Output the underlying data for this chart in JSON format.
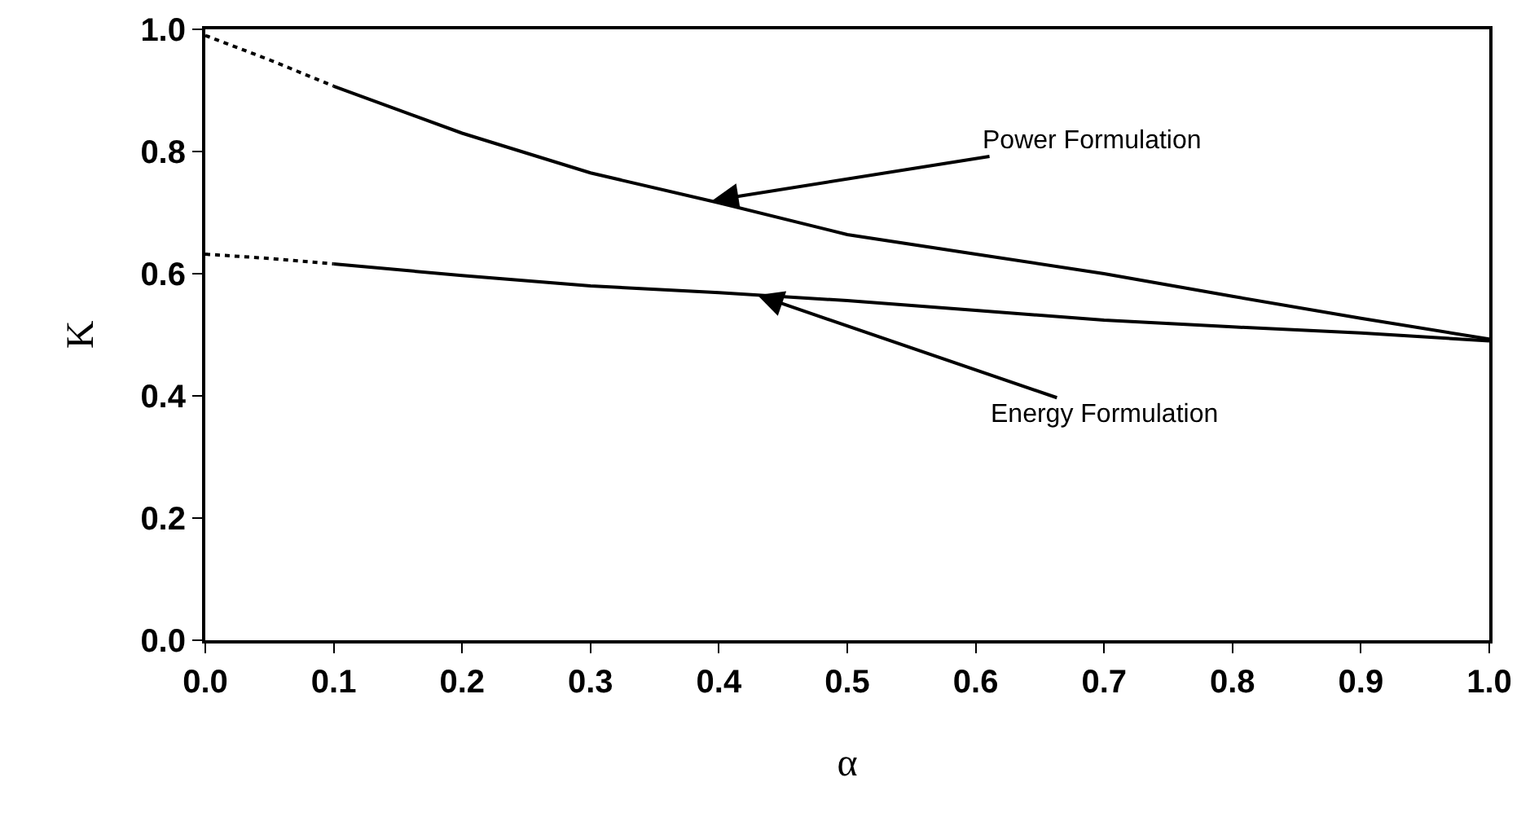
{
  "chart_data": {
    "type": "line",
    "xlabel": "α",
    "ylabel": "K",
    "xlim": [
      0,
      1
    ],
    "ylim": [
      0,
      1
    ],
    "xticks": [
      {
        "value": 0,
        "label": "0.0"
      },
      {
        "value": 0.1,
        "label": "0.1"
      },
      {
        "value": 0.2,
        "label": "0.2"
      },
      {
        "value": 0.3,
        "label": "0.3"
      },
      {
        "value": 0.4,
        "label": "0.4"
      },
      {
        "value": 0.5,
        "label": "0.5"
      },
      {
        "value": 0.6,
        "label": "0.6"
      },
      {
        "value": 0.7,
        "label": "0.7"
      },
      {
        "value": 0.8,
        "label": "0.8"
      },
      {
        "value": 0.9,
        "label": "0.9"
      },
      {
        "value": 1,
        "label": "1.0"
      }
    ],
    "yticks": [
      {
        "value": 0,
        "label": "0.0"
      },
      {
        "value": 0.2,
        "label": "0.2"
      },
      {
        "value": 0.4,
        "label": "0.4"
      },
      {
        "value": 0.6,
        "label": "0.6"
      },
      {
        "value": 0.8,
        "label": "0.8"
      },
      {
        "value": 1,
        "label": "1.0"
      }
    ],
    "series": [
      {
        "color": "#000000",
        "line_style": "dotted",
        "x": [
          0,
          0.05,
          0.1
        ],
        "values": [
          0.99,
          0.95,
          0.907
        ]
      },
      {
        "color": "#000000",
        "line_style": "solid",
        "x": [
          0.1,
          0.2,
          0.3,
          0.4,
          0.5,
          0.6,
          0.7,
          0.8,
          0.9,
          1.0
        ],
        "values": [
          0.907,
          0.83,
          0.765,
          0.716,
          0.664,
          0.632,
          0.6,
          0.563,
          0.527,
          0.493
        ]
      },
      {
        "color": "#000000",
        "line_style": "dotted",
        "x": [
          0,
          0.05,
          0.1
        ],
        "values": [
          0.632,
          0.625,
          0.616
        ]
      },
      {
        "color": "#000000",
        "line_style": "solid",
        "x": [
          0.1,
          0.2,
          0.3,
          0.4,
          0.5,
          0.6,
          0.7,
          0.8,
          0.9,
          1.0
        ],
        "values": [
          0.616,
          0.597,
          0.58,
          0.569,
          0.556,
          0.54,
          0.524,
          0.513,
          0.503,
          0.49
        ]
      }
    ],
    "annotations": [
      {
        "text": "Power Formulation",
        "x": 0.395,
        "y": 0.72
      },
      {
        "text": "Energy Formulation",
        "x": 0.43,
        "y": 0.565
      }
    ]
  }
}
